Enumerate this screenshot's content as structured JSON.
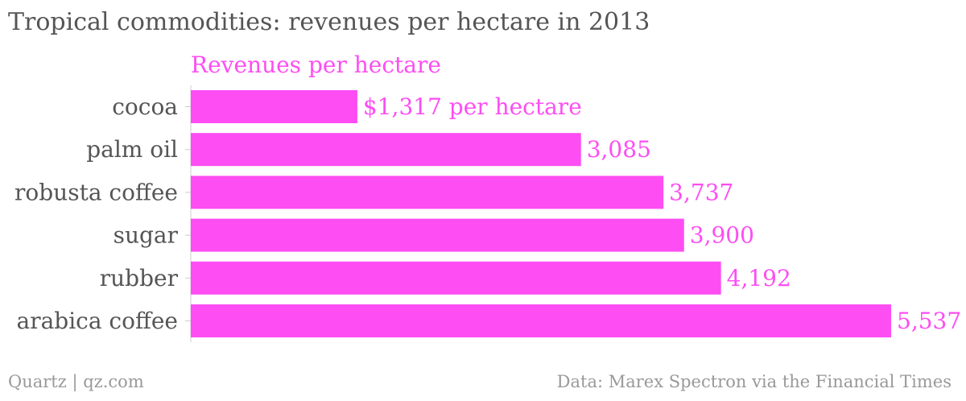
{
  "chart_data": {
    "type": "bar",
    "orientation": "horizontal",
    "title": "Tropical commodities: revenues per hectare in 2013",
    "series": [
      {
        "name": "Revenues per hectare",
        "values": [
          1317,
          3085,
          3737,
          3900,
          4192,
          5537
        ],
        "value_labels": [
          "$1,317 per hectare",
          "3,085",
          "3,737",
          "3,900",
          "4,192",
          "5,537"
        ]
      }
    ],
    "categories": [
      "cocoa",
      "palm oil",
      "robusta coffee",
      "sugar",
      "rubber",
      "arabica coffee"
    ],
    "xlim": [
      0,
      5537
    ],
    "grid": false,
    "colors": {
      "bar": "#fd4df3",
      "text": "#555555",
      "footer": "#999999",
      "tick": "#cccccc"
    }
  },
  "footer": {
    "source_left": "Quartz | qz.com",
    "source_right": "Data: Marex Spectron via the Financial Times"
  }
}
